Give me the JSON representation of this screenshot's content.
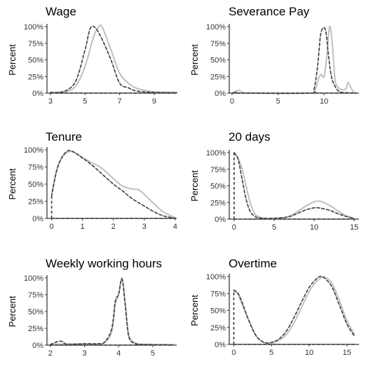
{
  "figure": {
    "background": "#ffffff"
  },
  "styles": {
    "series_a": {
      "color": "#c0c0c0",
      "dash": "solid"
    },
    "series_b": {
      "color": "#444444",
      "dash": "dashed"
    }
  },
  "chart_data": [
    {
      "type": "line",
      "title": "Wage",
      "ylabel": "Percent",
      "xlim": [
        2.8,
        10.3
      ],
      "ylim": [
        0,
        100
      ],
      "xticks": [
        "3",
        "5",
        "7",
        "9"
      ],
      "yticks": [
        "0%",
        "25%",
        "50%",
        "75%",
        "100%"
      ],
      "series": [
        {
          "style": "series_a",
          "points": [
            [
              3.0,
              1
            ],
            [
              4.0,
              3
            ],
            [
              4.5,
              12
            ],
            [
              5.0,
              40
            ],
            [
              5.5,
              85
            ],
            [
              5.8,
              100
            ],
            [
              6.0,
              99
            ],
            [
              6.5,
              65
            ],
            [
              7.0,
              30
            ],
            [
              7.5,
              15
            ],
            [
              8.0,
              7
            ],
            [
              8.5,
              4
            ],
            [
              9.0,
              2
            ],
            [
              10.3,
              1
            ]
          ]
        },
        {
          "style": "series_b",
          "points": [
            [
              3.0,
              1
            ],
            [
              3.5,
              1
            ],
            [
              4.0,
              5
            ],
            [
              4.5,
              20
            ],
            [
              5.0,
              65
            ],
            [
              5.3,
              97
            ],
            [
              5.6,
              98
            ],
            [
              6.0,
              80
            ],
            [
              6.5,
              50
            ],
            [
              7.0,
              15
            ],
            [
              7.5,
              8
            ],
            [
              8.0,
              3
            ],
            [
              9.0,
              1
            ],
            [
              10.3,
              0.5
            ]
          ]
        },
        {
          "style": "series_b",
          "points": [
            [
              3.0,
              0
            ],
            [
              10.3,
              0
            ]
          ]
        }
      ]
    },
    {
      "type": "line",
      "title": "Severance Pay",
      "ylabel": "Percent",
      "xlim": [
        -0.3,
        13.8
      ],
      "ylim": [
        0,
        100
      ],
      "xticks": [
        "0",
        "5",
        "10"
      ],
      "yticks": [
        "0%",
        "25%",
        "50%",
        "75%",
        "100%"
      ],
      "series": [
        {
          "style": "series_a",
          "points": [
            [
              0,
              0
            ],
            [
              0.4,
              3
            ],
            [
              0.8,
              4
            ],
            [
              1.2,
              1
            ],
            [
              2,
              0
            ],
            [
              8.5,
              0
            ],
            [
              9.0,
              3
            ],
            [
              9.4,
              22
            ],
            [
              9.7,
              28
            ],
            [
              10.0,
              25
            ],
            [
              10.3,
              55
            ],
            [
              10.6,
              100
            ],
            [
              10.9,
              75
            ],
            [
              11.2,
              20
            ],
            [
              11.6,
              8
            ],
            [
              12.0,
              5
            ],
            [
              12.4,
              7
            ],
            [
              12.6,
              16
            ],
            [
              12.9,
              9
            ],
            [
              13.2,
              2
            ],
            [
              13.5,
              0
            ]
          ]
        },
        {
          "style": "series_b",
          "points": [
            [
              0,
              0
            ],
            [
              0.5,
              1
            ],
            [
              1,
              0
            ],
            [
              8.5,
              0
            ],
            [
              8.9,
              5
            ],
            [
              9.3,
              40
            ],
            [
              9.6,
              85
            ],
            [
              9.9,
              98
            ],
            [
              10.2,
              92
            ],
            [
              10.5,
              55
            ],
            [
              10.8,
              25
            ],
            [
              11.2,
              10
            ],
            [
              11.6,
              3
            ],
            [
              12.0,
              1
            ],
            [
              13.5,
              0
            ]
          ]
        },
        {
          "style": "series_b",
          "points": [
            [
              0,
              0
            ],
            [
              13.5,
              0
            ]
          ]
        }
      ]
    },
    {
      "type": "line",
      "title": "Tenure",
      "ylabel": "Percent",
      "xlim": [
        -0.15,
        4.05
      ],
      "ylim": [
        0,
        100
      ],
      "xticks": [
        "0",
        "1",
        "2",
        "3",
        "4"
      ],
      "yticks": [
        "0%",
        "25%",
        "50%",
        "75%",
        "100%"
      ],
      "series": [
        {
          "style": "series_a",
          "points": [
            [
              0,
              35
            ],
            [
              0.15,
              68
            ],
            [
              0.3,
              86
            ],
            [
              0.5,
              96
            ],
            [
              0.7,
              97
            ],
            [
              1.0,
              89
            ],
            [
              1.3,
              81
            ],
            [
              1.6,
              74
            ],
            [
              2.0,
              58
            ],
            [
              2.3,
              47
            ],
            [
              2.6,
              43
            ],
            [
              2.8,
              42
            ],
            [
              3.0,
              35
            ],
            [
              3.3,
              22
            ],
            [
              3.6,
              10
            ],
            [
              3.9,
              3
            ],
            [
              4.0,
              1
            ]
          ]
        },
        {
          "style": "series_b",
          "points": [
            [
              0,
              32
            ],
            [
              0.15,
              67
            ],
            [
              0.3,
              86
            ],
            [
              0.5,
              98
            ],
            [
              0.7,
              97
            ],
            [
              1.0,
              88
            ],
            [
              1.3,
              78
            ],
            [
              1.6,
              66
            ],
            [
              2.0,
              50
            ],
            [
              2.3,
              40
            ],
            [
              2.6,
              29
            ],
            [
              3.0,
              18
            ],
            [
              3.3,
              10
            ],
            [
              3.6,
              4
            ],
            [
              3.9,
              1
            ],
            [
              4.0,
              0.5
            ]
          ]
        },
        {
          "style": "series_b",
          "points": [
            [
              0,
              0
            ],
            [
              4,
              0
            ]
          ]
        }
      ]
    },
    {
      "type": "line",
      "title": "20 days",
      "ylabel": "Percent",
      "xlim": [
        -0.6,
        15.6
      ],
      "ylim": [
        0,
        100
      ],
      "xticks": [
        "0",
        "5",
        "10",
        "15"
      ],
      "yticks": [
        "0%",
        "25%",
        "50%",
        "75%",
        "100%"
      ],
      "series": [
        {
          "style": "series_a",
          "points": [
            [
              0,
              98
            ],
            [
              0.5,
              92
            ],
            [
              1,
              75
            ],
            [
              1.5,
              50
            ],
            [
              2,
              25
            ],
            [
              2.5,
              10
            ],
            [
              3,
              4
            ],
            [
              4,
              1
            ],
            [
              6,
              2
            ],
            [
              7,
              5
            ],
            [
              8,
              12
            ],
            [
              9,
              20
            ],
            [
              10,
              26
            ],
            [
              10.5,
              27
            ],
            [
              11,
              26
            ],
            [
              12,
              20
            ],
            [
              13,
              12
            ],
            [
              14,
              5
            ],
            [
              15,
              1
            ]
          ]
        },
        {
          "style": "series_b",
          "points": [
            [
              0,
              100
            ],
            [
              0.5,
              90
            ],
            [
              1,
              60
            ],
            [
              1.5,
              30
            ],
            [
              2,
              12
            ],
            [
              2.5,
              5
            ],
            [
              3,
              2
            ],
            [
              4,
              1
            ],
            [
              6,
              2
            ],
            [
              7,
              4
            ],
            [
              8,
              9
            ],
            [
              9,
              14
            ],
            [
              10,
              17
            ],
            [
              10.5,
              17
            ],
            [
              11,
              16
            ],
            [
              12,
              13
            ],
            [
              13,
              8
            ],
            [
              14,
              4
            ],
            [
              15,
              1
            ]
          ]
        },
        {
          "style": "series_b",
          "points": [
            [
              0,
              0
            ],
            [
              15,
              0
            ]
          ]
        }
      ]
    },
    {
      "type": "line",
      "title": "Weekly working hours",
      "ylabel": "Percent",
      "xlim": [
        1.9,
        5.7
      ],
      "ylim": [
        0,
        100
      ],
      "xticks": [
        "2",
        "3",
        "4",
        "5"
      ],
      "yticks": [
        "0%",
        "25%",
        "50%",
        "75%",
        "100%"
      ],
      "series": [
        {
          "style": "series_a",
          "points": [
            [
              2.0,
              1
            ],
            [
              2.5,
              2
            ],
            [
              3.0,
              2
            ],
            [
              3.4,
              2
            ],
            [
              3.6,
              4
            ],
            [
              3.8,
              20
            ],
            [
              3.9,
              60
            ],
            [
              4.0,
              75
            ],
            [
              4.1,
              100
            ],
            [
              4.2,
              60
            ],
            [
              4.3,
              15
            ],
            [
              4.5,
              3
            ],
            [
              4.8,
              1
            ],
            [
              5.0,
              0.5
            ],
            [
              5.6,
              0.5
            ]
          ]
        },
        {
          "style": "series_b",
          "points": [
            [
              2.0,
              1
            ],
            [
              2.3,
              6
            ],
            [
              2.5,
              1
            ],
            [
              3.0,
              2
            ],
            [
              3.4,
              2
            ],
            [
              3.6,
              5
            ],
            [
              3.8,
              25
            ],
            [
              3.9,
              65
            ],
            [
              4.0,
              76
            ],
            [
              4.1,
              98
            ],
            [
              4.2,
              55
            ],
            [
              4.3,
              12
            ],
            [
              4.5,
              2
            ],
            [
              4.8,
              1
            ],
            [
              5.6,
              0.5
            ]
          ]
        },
        {
          "style": "series_b",
          "points": [
            [
              2.0,
              0
            ],
            [
              5.6,
              0
            ]
          ]
        }
      ]
    },
    {
      "type": "line",
      "title": "Overtime",
      "ylabel": "Percent",
      "xlim": [
        -0.6,
        16.6
      ],
      "ylim": [
        0,
        100
      ],
      "xticks": [
        "0",
        "5",
        "10",
        "15"
      ],
      "yticks": [
        "0%",
        "25%",
        "50%",
        "75%",
        "100%"
      ],
      "series": [
        {
          "style": "series_a",
          "points": [
            [
              0,
              78
            ],
            [
              0.5,
              75
            ],
            [
              1,
              62
            ],
            [
              2,
              35
            ],
            [
              3,
              12
            ],
            [
              4,
              3
            ],
            [
              5,
              2
            ],
            [
              6,
              6
            ],
            [
              7,
              15
            ],
            [
              8,
              32
            ],
            [
              9,
              55
            ],
            [
              10,
              78
            ],
            [
              11,
              93
            ],
            [
              12,
              99
            ],
            [
              13,
              90
            ],
            [
              14,
              65
            ],
            [
              15,
              35
            ],
            [
              16,
              15
            ]
          ]
        },
        {
          "style": "series_b",
          "points": [
            [
              0,
              80
            ],
            [
              0.5,
              76
            ],
            [
              1,
              65
            ],
            [
              2,
              35
            ],
            [
              3,
              12
            ],
            [
              4,
              3
            ],
            [
              5,
              3
            ],
            [
              6,
              8
            ],
            [
              7,
              20
            ],
            [
              8,
              40
            ],
            [
              9,
              63
            ],
            [
              10,
              84
            ],
            [
              11,
              97
            ],
            [
              11.5,
              100
            ],
            [
              12,
              98
            ],
            [
              13,
              85
            ],
            [
              14,
              58
            ],
            [
              15,
              30
            ],
            [
              16,
              12
            ]
          ]
        },
        {
          "style": "series_b",
          "points": [
            [
              0,
              0
            ],
            [
              16,
              0
            ]
          ]
        }
      ]
    }
  ]
}
